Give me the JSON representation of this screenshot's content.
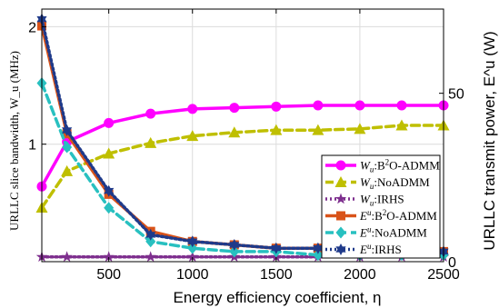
{
  "chart_data": {
    "type": "line",
    "x": [
      100,
      250,
      500,
      750,
      1000,
      1250,
      1500,
      1750,
      2000,
      2250,
      2500
    ],
    "xlabel": "Energy efficiency coefficient, η",
    "ylabel_left": "URLLC slice bandwidth, W_u (MHz)",
    "ylabel_right": "URLLC transmit power, E^u (W)",
    "xlim": [
      100,
      2500
    ],
    "ylim_left": [
      0,
      2.15
    ],
    "ylim_right": [
      0,
      75
    ],
    "xticks": [
      500,
      1000,
      1500,
      2000,
      2500
    ],
    "xtick_labels": [
      "500",
      "1000",
      "1500",
      "2000",
      "2500"
    ],
    "yticks_left": [
      1,
      2
    ],
    "ytick_labels_left": [
      "1",
      "2"
    ],
    "yticks_right": [
      0,
      50
    ],
    "ytick_labels_right": [
      "0",
      "50"
    ],
    "grid": true,
    "legend_position": "bottom-right",
    "series": [
      {
        "name": "Wu:B2O-ADMM",
        "axis": "left",
        "color": "#ff00ff",
        "marker": "circle",
        "dash": "solid",
        "values": [
          0.64,
          1.02,
          1.18,
          1.26,
          1.3,
          1.31,
          1.32,
          1.33,
          1.33,
          1.33,
          1.33
        ]
      },
      {
        "name": "Wu:NoADMM",
        "axis": "left",
        "color": "#bfbf00",
        "marker": "triangle",
        "dash": "dashed",
        "values": [
          0.46,
          0.77,
          0.92,
          1.01,
          1.07,
          1.1,
          1.12,
          1.12,
          1.13,
          1.16,
          1.16
        ]
      },
      {
        "name": "Wu:IRHS",
        "axis": "left",
        "color": "#7e2f8e",
        "marker": "star",
        "dash": "dotted",
        "values": [
          0.04,
          0.04,
          0.04,
          0.04,
          0.04,
          0.04,
          0.04,
          0.04,
          0.04,
          0.04,
          0.04
        ]
      },
      {
        "name": "Eu:B2O-ADMM",
        "axis": "right",
        "color": "#d95319",
        "marker": "square",
        "dash": "solid",
        "values": [
          70,
          38,
          20,
          9,
          6,
          5,
          4,
          4,
          4,
          3,
          3
        ]
      },
      {
        "name": "Eu:NoADMM",
        "axis": "right",
        "color": "#28c0c0",
        "marker": "diamond",
        "dash": "dashed",
        "values": [
          53,
          34,
          16,
          6,
          4,
          3,
          3,
          2,
          2,
          2,
          2
        ]
      },
      {
        "name": "Eu:IRHS",
        "axis": "right",
        "color": "#1f3a8a",
        "marker": "hexagram",
        "dash": "dotted",
        "values": [
          72,
          39,
          21,
          8,
          6,
          5,
          4,
          4,
          4,
          3,
          3
        ]
      }
    ],
    "legend_entries": [
      {
        "pre": "W",
        "sub": "u",
        "post": ":B",
        "sup": "2",
        "tail": "O-ADMM"
      },
      {
        "pre": "W",
        "sub": "u",
        "post": ":NoADMM",
        "sup": "",
        "tail": ""
      },
      {
        "pre": "W",
        "sub": "u",
        "post": ":IRHS",
        "sup": "",
        "tail": ""
      },
      {
        "pre": "E",
        "sup0": "u",
        "post": ":B",
        "sup": "2",
        "tail": "O-ADMM"
      },
      {
        "pre": "E",
        "sup0": "u",
        "post": ":NoADMM",
        "sup": "",
        "tail": ""
      },
      {
        "pre": "E",
        "sup0": "u",
        "post": ":IRHS",
        "sup": "",
        "tail": ""
      }
    ]
  }
}
